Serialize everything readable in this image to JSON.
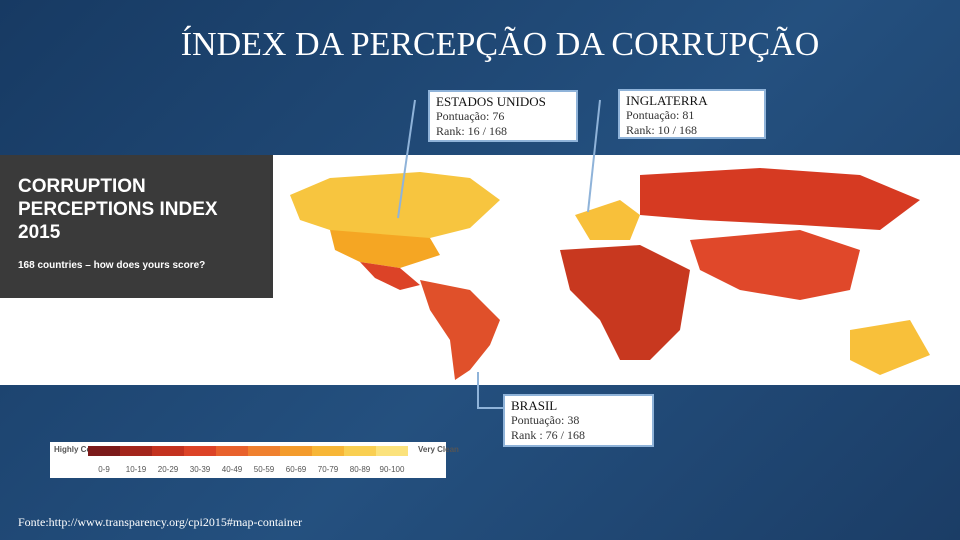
{
  "title": "ÍNDEX DA PERCEPÇÃO DA CORRUPÇÃO",
  "map_header": {
    "lines": [
      "CORRUPTION",
      "PERCEPTIONS INDEX",
      "2015"
    ],
    "subtitle": "168 countries – how does yours score?"
  },
  "callouts": [
    {
      "name": "ESTADOS UNIDOS",
      "score": "Pontuação: 76",
      "rank": "Rank: 16 / 168"
    },
    {
      "name": "INGLATERRA",
      "score": "Pontuação: 81",
      "rank": "Rank: 10 / 168"
    },
    {
      "name": "BRASIL",
      "score": "Pontuação: 38",
      "rank": "Rank : 76 / 168"
    }
  ],
  "legend": {
    "low": "Highly Corrupt",
    "high": "Very Clean",
    "ranges": [
      "0-9",
      "10-19",
      "20-29",
      "30-39",
      "40-49",
      "50-59",
      "60-69",
      "70-79",
      "80-89",
      "90-100"
    ],
    "colors": [
      "#7b1a1a",
      "#a3261c",
      "#c3321f",
      "#dc4327",
      "#e8612c",
      "#ef802f",
      "#f39b2c",
      "#f7b637",
      "#f9cf52",
      "#fbe27c"
    ]
  },
  "source": "Fonte:http://www.transparency.org/cpi2015#map-container"
}
